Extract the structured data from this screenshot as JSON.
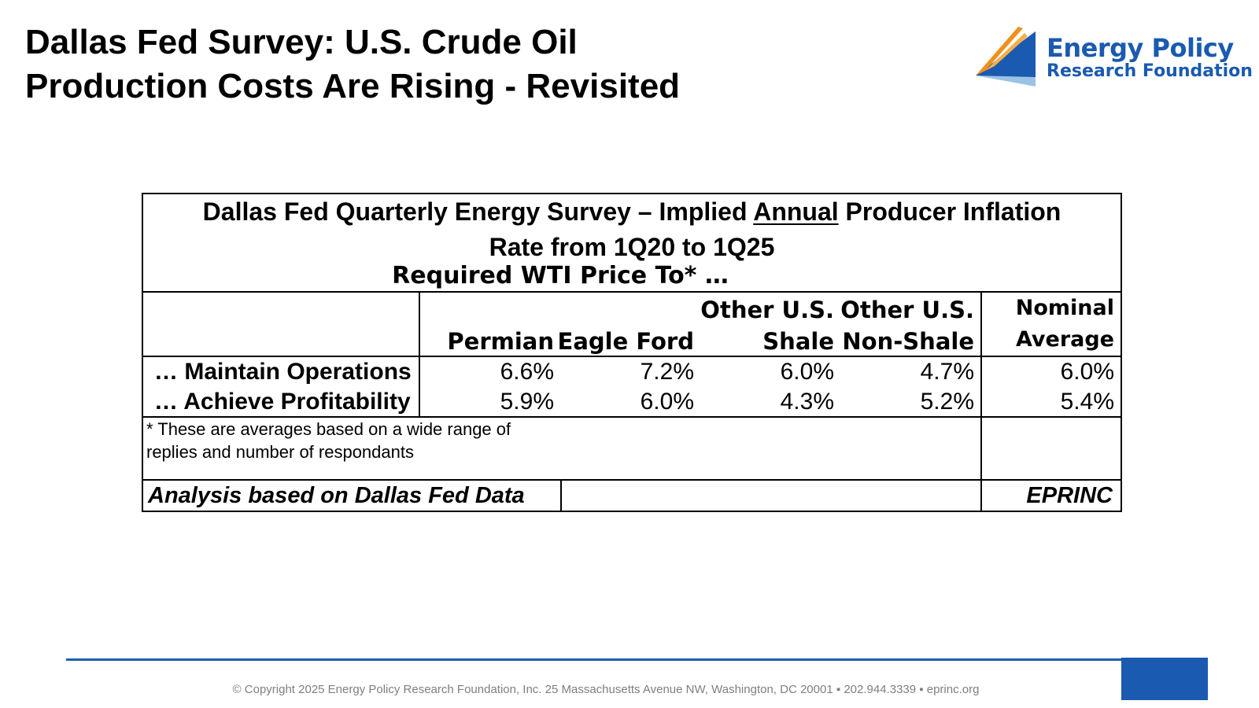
{
  "slide": {
    "title_line1": "Dallas Fed Survey: U.S. Crude Oil",
    "title_line2": "Production Costs Are Rising - Revisited"
  },
  "logo": {
    "line1": "Energy Policy",
    "line2": "Research Foundation",
    "colors": {
      "blue": "#1a5ab0",
      "light_blue": "#9cc3e6",
      "orange": "#f0901e"
    }
  },
  "table": {
    "title_part1": "Dallas Fed Quarterly Energy Survey – Implied ",
    "title_underlined": "Annual",
    "title_part2": " Producer Inflation",
    "title_line2": "Rate from 1Q20 to 1Q25",
    "subheader": "Required WTI Price To*  …",
    "columns": [
      {
        "line1": "",
        "line2": "Permian"
      },
      {
        "line1": "",
        "line2": "Eagle Ford"
      },
      {
        "line1": "Other U.S.",
        "line2": "Shale"
      },
      {
        "line1": "Other U.S.",
        "line2": "Non-Shale"
      },
      {
        "line1": "Nominal",
        "line2": "Average"
      }
    ],
    "rows": [
      {
        "label": "… Maintain Operations",
        "values": [
          "6.6%",
          "7.2%",
          "6.0%",
          "4.7%",
          "6.0%"
        ]
      },
      {
        "label": "… Achieve Profitability",
        "values": [
          "5.9%",
          "6.0%",
          "4.3%",
          "5.2%",
          "5.4%"
        ]
      }
    ],
    "note_line1": "* These are averages based on a wide range of",
    "note_line2": "replies and number of respondants",
    "footer_left": "Analysis based on Dallas Fed Data",
    "footer_right": "EPRINC"
  },
  "chart_data": {
    "type": "table",
    "title": "Dallas Fed Quarterly Energy Survey – Implied Annual Producer Inflation Rate from 1Q20 to 1Q25",
    "columns": [
      "Permian",
      "Eagle Ford",
      "Other U.S. Shale",
      "Other U.S. Non-Shale",
      "Nominal Average"
    ],
    "rows": [
      {
        "label": "… Maintain Operations",
        "values": [
          6.6,
          7.2,
          6.0,
          4.7,
          6.0
        ]
      },
      {
        "label": "… Achieve Profitability",
        "values": [
          5.9,
          6.0,
          4.3,
          5.2,
          5.4
        ]
      }
    ],
    "unit": "%"
  },
  "footer": {
    "text": "© Copyright 2025 Energy Policy Research Foundation, Inc. 25 Massachusetts Avenue NW, Washington, DC 20001 ▪ 202.944.3339 ▪ eprinc.org",
    "colors": {
      "line": "#1f5fae",
      "box": "#1a5ab0"
    }
  }
}
